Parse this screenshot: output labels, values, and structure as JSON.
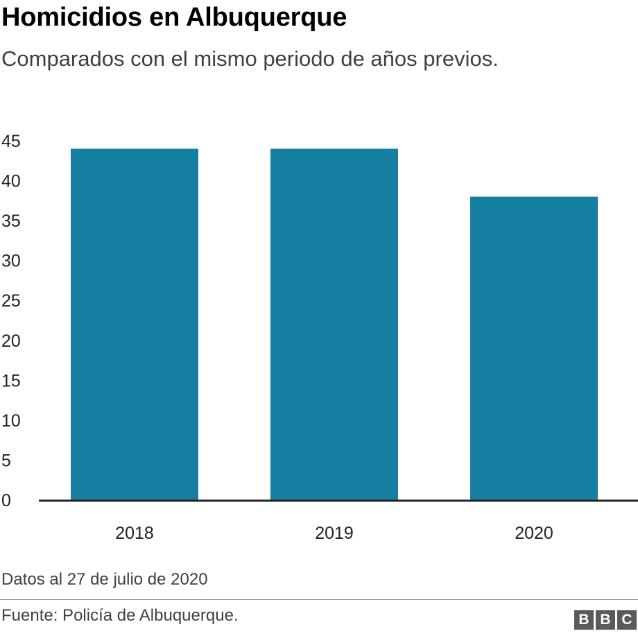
{
  "header": {
    "title": "Homicidios en Albuquerque",
    "subtitle": "Comparados con el mismo periodo de años previos."
  },
  "chart_data": {
    "type": "bar",
    "categories": [
      "2018",
      "2019",
      "2020"
    ],
    "values": [
      44,
      44,
      38
    ],
    "title": "Homicidios en Albuquerque",
    "subtitle": "Comparados con el mismo periodo de años previos.",
    "xlabel": "",
    "ylabel": "",
    "ylim": [
      0,
      45
    ],
    "yticks": [
      0,
      5,
      10,
      15,
      20,
      25,
      30,
      35,
      40,
      45
    ],
    "grid": false,
    "legend": "none",
    "bar_color": "#167ea0",
    "axis_color": "#222222"
  },
  "footer": {
    "note": "Datos al 27 de julio de 2020",
    "source": "Fuente: Policía de Albuquerque.",
    "logo_letters": [
      "B",
      "B",
      "C"
    ]
  }
}
